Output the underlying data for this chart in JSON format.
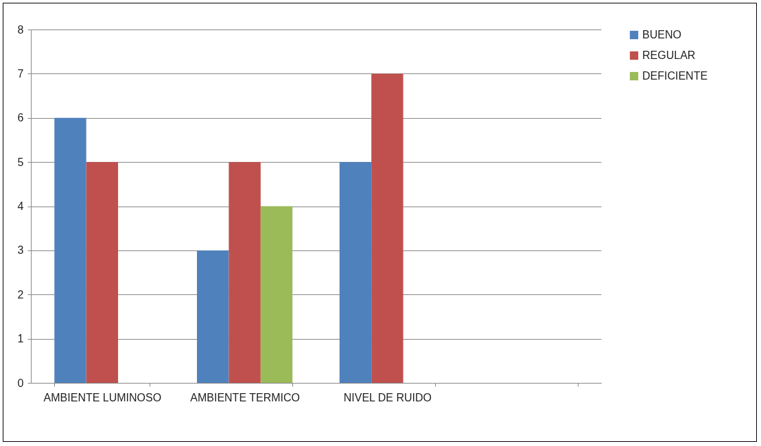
{
  "chart_data": {
    "type": "bar",
    "categories": [
      "AMBIENTE LUMINOSO",
      "AMBIENTE TERMICO",
      "NIVEL DE RUIDO",
      null
    ],
    "series": [
      {
        "name": "BUENO",
        "color": "#4f81bd",
        "values": [
          6,
          3,
          5,
          null
        ]
      },
      {
        "name": "REGULAR",
        "color": "#c0504d",
        "values": [
          5,
          5,
          7,
          null
        ]
      },
      {
        "name": "DEFICIENTE",
        "color": "#9bbb59",
        "values": [
          null,
          4,
          null,
          null
        ]
      }
    ],
    "ylim": [
      0,
      8
    ],
    "yticks": [
      0,
      1,
      2,
      3,
      4,
      5,
      6,
      7,
      8
    ],
    "grid": "y",
    "legend": "right"
  }
}
